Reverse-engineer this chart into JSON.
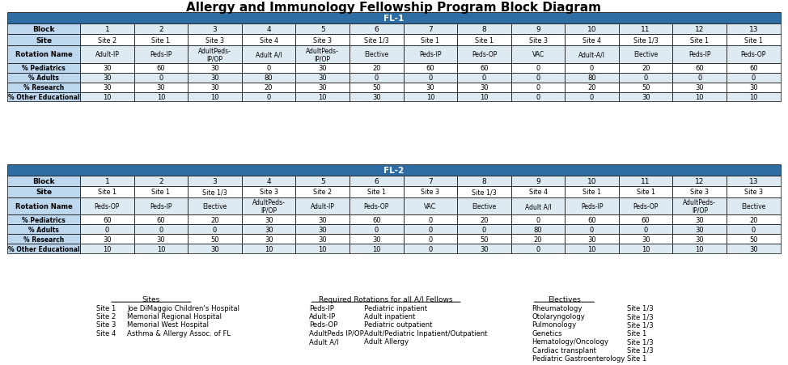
{
  "title": "Allergy and Immunology Fellowship Program Block Diagram",
  "title_fontsize": 11,
  "header_bg": "#2E6DA4",
  "header_fg": "#FFFFFF",
  "row_label_bg": "#BDD7EE",
  "row_label_fg": "#000000",
  "alt_row_bg": "#DEEAF1",
  "white_bg": "#FFFFFF",
  "border_color": "#000000",
  "fl1": {
    "label": "FL-1",
    "blocks": [
      "1",
      "2",
      "3",
      "4",
      "5",
      "6",
      "7",
      "8",
      "9",
      "10",
      "11",
      "12",
      "13"
    ],
    "site": [
      "Site 2",
      "Site 1",
      "Site 3",
      "Site 4",
      "Site 3",
      "Site 1/3",
      "Site 1",
      "Site 1",
      "Site 3",
      "Site 4",
      "Site 1/3",
      "Site 1",
      "Site 1"
    ],
    "rotation": [
      "Adult-IP",
      "Peds-IP",
      "AdultPeds-\nIP/OP",
      "Adult A/I",
      "AdultPeds-\nIP/OP",
      "Elective",
      "Peds-IP",
      "Peds-OP",
      "VAC",
      "Adult-A/I",
      "Elective",
      "Peds-IP",
      "Peds-OP"
    ],
    "peds": [
      "30",
      "60",
      "30",
      "0",
      "30",
      "20",
      "60",
      "60",
      "0",
      "0",
      "20",
      "60",
      "60"
    ],
    "adults": [
      "30",
      "0",
      "30",
      "80",
      "30",
      "0",
      "0",
      "0",
      "0",
      "80",
      "0",
      "0",
      "0"
    ],
    "research": [
      "30",
      "30",
      "30",
      "20",
      "30",
      "50",
      "30",
      "30",
      "0",
      "20",
      "50",
      "30",
      "30"
    ],
    "other": [
      "10",
      "10",
      "10",
      "0",
      "10",
      "30",
      "10",
      "10",
      "0",
      "0",
      "30",
      "10",
      "10"
    ]
  },
  "fl2": {
    "label": "FL-2",
    "blocks": [
      "1",
      "2",
      "3",
      "4",
      "5",
      "6",
      "7",
      "8",
      "9",
      "10",
      "11",
      "12",
      "13"
    ],
    "site": [
      "Site 1",
      "Site 1",
      "Site 1/3",
      "Site 3",
      "Site 2",
      "Site 1",
      "Site 3",
      "Site 1/3",
      "Site 4",
      "Site 1",
      "Site 1",
      "Site 3",
      "Site 3"
    ],
    "rotation": [
      "Peds-OP",
      "Peds-IP",
      "Elective",
      "AdultPeds-\nIP/OP",
      "Adult-IP",
      "Peds-OP",
      "VAC",
      "Elective",
      "Adult A/I",
      "Peds-IP",
      "Peds-OP",
      "AdultPeds-\nIP/OP",
      "Elective"
    ],
    "peds": [
      "60",
      "60",
      "20",
      "30",
      "30",
      "60",
      "0",
      "20",
      "0",
      "60",
      "60",
      "30",
      "20"
    ],
    "adults": [
      "0",
      "0",
      "0",
      "30",
      "30",
      "0",
      "0",
      "0",
      "80",
      "0",
      "0",
      "30",
      "0"
    ],
    "research": [
      "30",
      "30",
      "50",
      "30",
      "30",
      "30",
      "0",
      "50",
      "20",
      "30",
      "30",
      "30",
      "50"
    ],
    "other": [
      "10",
      "10",
      "30",
      "10",
      "10",
      "10",
      "0",
      "30",
      "0",
      "10",
      "10",
      "10",
      "30"
    ]
  },
  "sites_header": "Sites",
  "sites_rows": [
    [
      "Site 1",
      "Joe DiMaggio Children's Hospital"
    ],
    [
      "Site 2",
      "Memorial Regional Hospital"
    ],
    [
      "Site 3",
      "Memorial West Hospital"
    ],
    [
      "Site 4",
      "Asthma & Allergy Assoc. of FL"
    ]
  ],
  "required_header": "Required Rotations for all A/I Fellows",
  "required_rows": [
    [
      "Peds-IP",
      "Pediatric inpatient"
    ],
    [
      "Adult-IP",
      "Adult inpatient"
    ],
    [
      "Peds-OP",
      "Pediatric outpatient"
    ],
    [
      "AdultPeds IP/OP",
      "Adult/Pediatric Inpatient/Outpatient"
    ],
    [
      "Adult A/I",
      "Adult Allergy"
    ]
  ],
  "electives_header": "Electives",
  "electives_rows": [
    [
      "Rheumatology",
      "Site 1/3"
    ],
    [
      "Otolaryngology",
      "Site 1/3"
    ],
    [
      "Pulmonology",
      "Site 1/3"
    ],
    [
      "Genetics",
      "Site 1"
    ],
    [
      "Hematology/Oncology",
      "Site 1/3"
    ],
    [
      "Cardiac transplant",
      "Site 1/3"
    ],
    [
      "Pediatric Gastroenterology",
      "Site 1"
    ]
  ]
}
